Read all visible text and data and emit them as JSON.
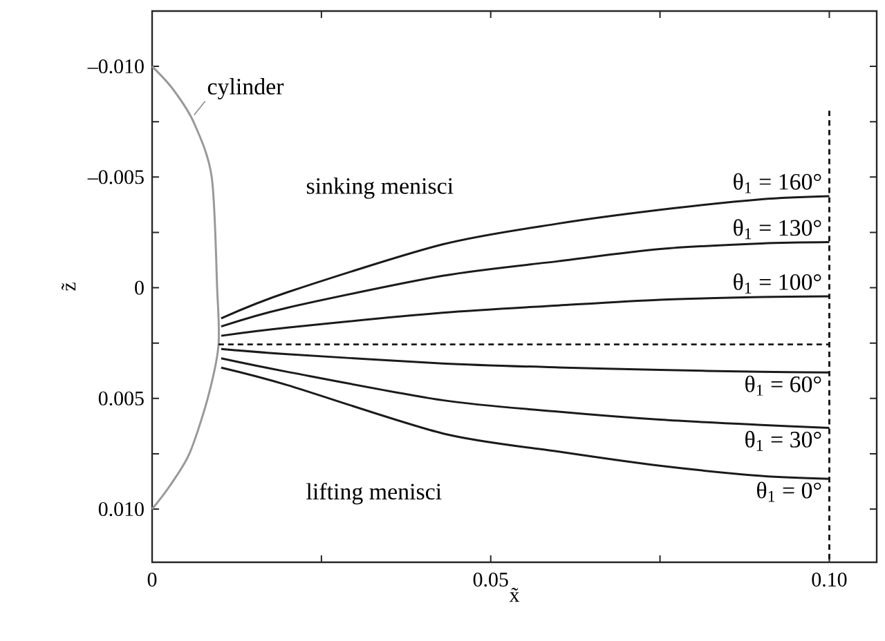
{
  "chart_data": {
    "type": "line",
    "xlabel": "x̃",
    "ylabel": "z̃",
    "legend": "right",
    "xlim": [
      0,
      0.107
    ],
    "ylim": [
      0.0124,
      -0.0125
    ],
    "xticks": [
      {
        "value": 0,
        "label": "0"
      },
      {
        "value": 0.025,
        "label": null
      },
      {
        "value": 0.05,
        "label": "0.05"
      },
      {
        "value": 0.075,
        "label": null
      },
      {
        "value": 0.1,
        "label": "0.10"
      }
    ],
    "yticks": [
      {
        "value": -0.01,
        "label": "–0.010"
      },
      {
        "value": -0.0075,
        "label": null
      },
      {
        "value": -0.005,
        "label": "–0.005"
      },
      {
        "value": -0.0025,
        "label": null
      },
      {
        "value": 0,
        "label": "0"
      },
      {
        "value": 0.0025,
        "label": null
      },
      {
        "value": 0.005,
        "label": "0.005"
      },
      {
        "value": 0.0075,
        "label": null
      },
      {
        "value": 0.01,
        "label": "0.010"
      }
    ],
    "annotations": [
      {
        "text": "cylinder",
        "x": 0.0062,
        "y": -0.0078
      },
      "sinking menisci",
      "lifting menisci"
    ],
    "series": [
      {
        "color": "#999999",
        "line_style": "solid",
        "x": [
          0,
          0.003,
          0.0061,
          0.0088,
          0.0096,
          0.0098,
          0.0082,
          0.0055,
          0.0025,
          0
        ],
        "values": [
          -0.01,
          -0.009,
          -0.0075,
          -0.005,
          0,
          0.0026,
          0.005,
          0.0075,
          0.009,
          0.01
        ]
      },
      {
        "name": "θ$_{1}$ = 160°",
        "color": "#1a1a1a",
        "line_style": "solid",
        "x": [
          0.0102,
          0.02,
          0.0429,
          0.06,
          0.075,
          0.09,
          0.1
        ],
        "values": [
          0.00138,
          0.0002,
          -0.00196,
          -0.0029,
          -0.00352,
          -0.004,
          -0.00414
        ]
      },
      {
        "name": "θ$_{1}$ = 130°",
        "color": "#1a1a1a",
        "line_style": "solid",
        "x": [
          0.0102,
          0.02,
          0.0429,
          0.06,
          0.075,
          0.09,
          0.1
        ],
        "values": [
          0.00175,
          0.0009,
          -0.00054,
          -0.0012,
          -0.00175,
          -0.002,
          -0.00206
        ]
      },
      {
        "name": "θ$_{1}$ = 100°",
        "color": "#1a1a1a",
        "line_style": "solid",
        "x": [
          0.0102,
          0.02,
          0.0429,
          0.06,
          0.075,
          0.09,
          0.1
        ],
        "values": [
          0.00217,
          0.0018,
          0.00113,
          0.0008,
          0.00054,
          0.00042,
          0.00039
        ]
      },
      {
        "color": "#1a1a1a",
        "line_style": "dashed",
        "x": [
          0.0098,
          0.1
        ],
        "values": [
          0.00256,
          0.00256
        ]
      },
      {
        "name": "θ$_{1}$ = 60°",
        "color": "#1a1a1a",
        "line_style": "solid",
        "x": [
          0.0102,
          0.02,
          0.0429,
          0.06,
          0.075,
          0.09,
          0.1
        ],
        "values": [
          0.00277,
          0.003,
          0.00342,
          0.0036,
          0.00371,
          0.0038,
          0.00383
        ]
      },
      {
        "name": "θ$_{1}$ = 30°",
        "color": "#1a1a1a",
        "line_style": "solid",
        "x": [
          0.0102,
          0.02,
          0.0429,
          0.06,
          0.075,
          0.09,
          0.1
        ],
        "values": [
          0.00319,
          0.0038,
          0.00508,
          0.0056,
          0.00596,
          0.0062,
          0.00633
        ]
      },
      {
        "name": "θ$_{1}$ = 0°",
        "color": "#1a1a1a",
        "line_style": "solid",
        "x": [
          0.0102,
          0.02,
          0.0429,
          0.06,
          0.075,
          0.09,
          0.1
        ],
        "values": [
          0.00361,
          0.0044,
          0.00658,
          0.0074,
          0.00804,
          0.0085,
          0.00863
        ]
      },
      {
        "color": "#1a1a1a",
        "line_style": "dashed",
        "x": [
          0.1,
          0.1
        ],
        "values": [
          -0.008,
          0.0124
        ]
      }
    ]
  }
}
